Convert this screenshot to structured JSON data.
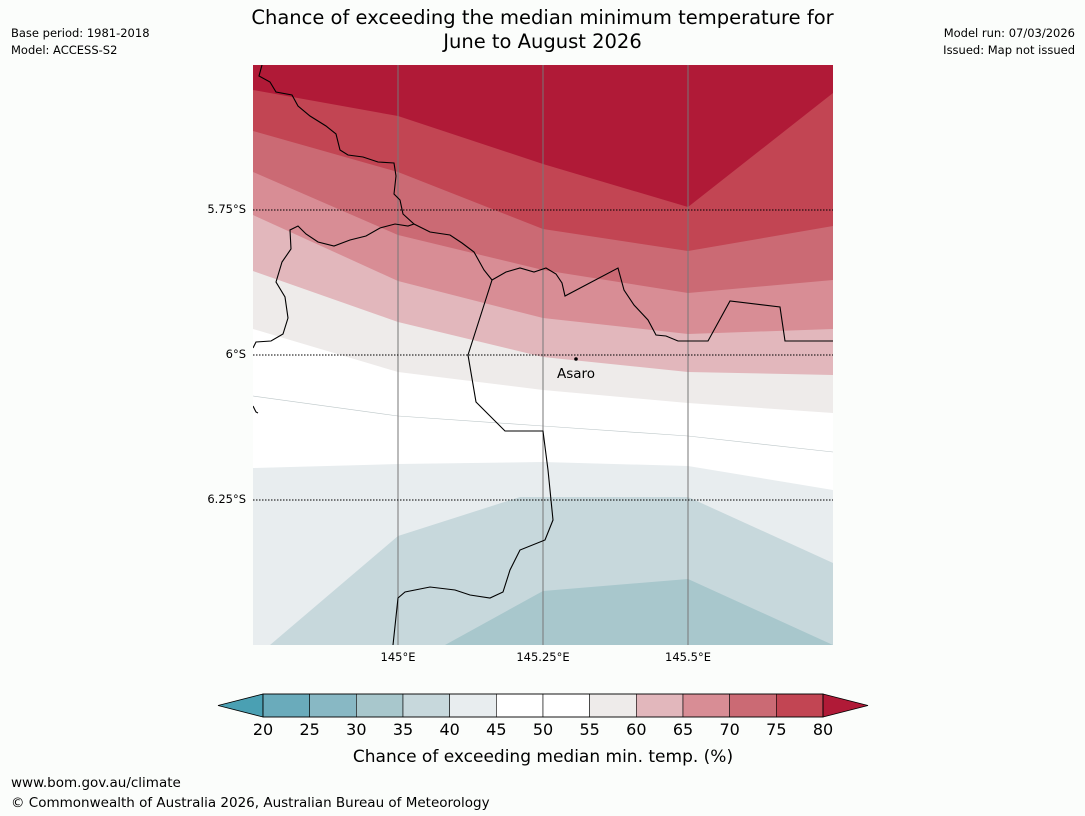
{
  "header": {
    "title_line1": "Chance of exceeding the median minimum temperature for",
    "title_line2": "June to August 2026",
    "base_period": "Base period: 1981-2018",
    "model": "Model: ACCESS-S2",
    "model_run": "Model run: 07/03/2026",
    "issued": "Issued: Map not issued"
  },
  "map": {
    "lat_labels": [
      "5.75°S",
      "6°S",
      "6.25°S"
    ],
    "lon_labels": [
      "145°E",
      "145.25°E",
      "145.5°E"
    ],
    "town": {
      "name": "Asaro",
      "lon": 145.3,
      "lat": -6.01
    },
    "extent": {
      "lon_min": 144.75,
      "lon_max": 145.75,
      "lat_min": -6.5,
      "lat_max": -5.5
    }
  },
  "colorbar": {
    "ticks": [
      "20",
      "25",
      "30",
      "35",
      "40",
      "45",
      "50",
      "55",
      "60",
      "65",
      "70",
      "75",
      "80"
    ],
    "under_color": "#4aa0b3",
    "over_color": "#b01a37",
    "colors": [
      "#6aabbb",
      "#88b8c4",
      "#a8c7cc",
      "#c7d8dc",
      "#e8edef",
      "#ffffff",
      "#ffffff",
      "#eeebea",
      "#e2b7bc",
      "#d88d95",
      "#cb6a74",
      "#c24553"
    ],
    "label": "Chance of exceeding median min. temp. (%)"
  },
  "footer": {
    "url": "www.bom.gov.au/climate",
    "copyright": "© Commonwealth of Australia 2026, Australian Bureau of Meteorology"
  }
}
